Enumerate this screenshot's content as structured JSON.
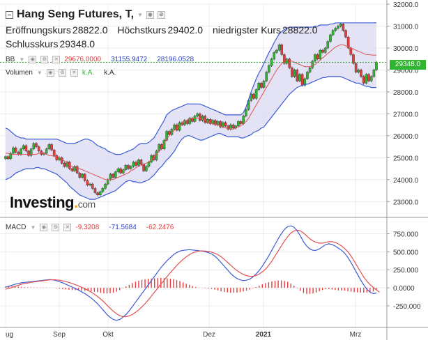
{
  "header": {
    "title": "Hang Seng Futures, T,",
    "open_label": "Eröffnungskurs",
    "open_value": "28822.0",
    "high_label": "Höchstkurs",
    "high_value": "29402.0",
    "low_label": "niedrigster Kurs",
    "low_value": "28822.0",
    "close_label": "Schlusskurs",
    "close_value": "29348.0"
  },
  "indicators": {
    "bb": {
      "name": "BB",
      "middle": "29676.0000",
      "upper": "31155.9472",
      "lower": "28196.0528"
    },
    "volume": {
      "name": "Volumen",
      "value1": "k.A.",
      "value2": "k.A."
    },
    "macd": {
      "name": "MACD",
      "histogram": "-9.3208",
      "macd": "-71.5684",
      "signal": "-62.2476"
    }
  },
  "price_tag": "29348.0",
  "logo": {
    "text": "Investing",
    "suffix": "com"
  },
  "colors": {
    "up": "#2fb52f",
    "down": "#e23d3d",
    "bb_fill": "#dcdcf2",
    "bb_line": "#3b5bd6",
    "bb_mid": "#e05050",
    "macd_line": "#3b5bd6",
    "signal_line": "#e05050",
    "accent": "#2fb52f"
  },
  "chart_data": [
    {
      "type": "line",
      "ylim": [
        22500,
        32000
      ],
      "y_ticks": [
        "23000.0",
        "24000.0",
        "25000.0",
        "26000.0",
        "27000.0",
        "28000.0",
        "29000.0",
        "30000.0",
        "31000.0",
        "32000.0"
      ],
      "x_labels": [
        "ug",
        "Sep",
        "Okt",
        "Dez",
        "2021",
        "Mrz"
      ],
      "close": [
        25050,
        24950,
        25200,
        25450,
        25250,
        25150,
        25400,
        25550,
        25300,
        25100,
        25400,
        25650,
        25500,
        25300,
        25150,
        25200,
        25400,
        25600,
        25350,
        25100,
        24900,
        25000,
        24750,
        24600,
        24800,
        24500,
        24400,
        24600,
        24300,
        24100,
        24250,
        23950,
        23750,
        23800,
        23600,
        23400,
        23300,
        23450,
        23600,
        23800,
        24000,
        24250,
        24100,
        24350,
        24500,
        24300,
        24450,
        24650,
        24500,
        24600,
        24800,
        24650,
        24900,
        24700,
        24400,
        24600,
        24800,
        25100,
        24900,
        25300,
        25600,
        25400,
        25800,
        26200,
        26050,
        26300,
        26500,
        26250,
        26600,
        26500,
        26700,
        26550,
        26800,
        26650,
        26900,
        27000,
        26700,
        26900,
        26600,
        26750,
        26550,
        26700,
        26500,
        26650,
        26400,
        26600,
        26450,
        26300,
        26500,
        26350,
        26450,
        26650,
        26550,
        26900,
        27200,
        27600,
        27900,
        27700,
        28100,
        28400,
        28200,
        28500,
        28900,
        29200,
        29500,
        29800,
        29900,
        30150,
        29700,
        29300,
        29500,
        29100,
        28700,
        29000,
        28500,
        28800,
        28300,
        28600,
        28900,
        29100,
        29400,
        29700,
        29500,
        29900,
        29800,
        30000,
        30300,
        30600,
        30800,
        30900,
        31000,
        31100,
        30800,
        30500,
        30000,
        29700,
        29300,
        28900,
        29000,
        28700,
        28400,
        28800,
        28500,
        28700,
        29000,
        29348
      ],
      "bb_upper": [
        26350,
        26300,
        26200,
        26100,
        26000,
        25950,
        25900,
        25900,
        25850,
        25850,
        25850,
        25850,
        25850,
        25850,
        25850,
        25850,
        25850,
        25850,
        25850,
        25850,
        25850,
        25800,
        25750,
        25700,
        25650,
        25650,
        25650,
        25650,
        25700,
        25750,
        25800,
        25850,
        25850,
        25800,
        25750,
        25650,
        25550,
        25500,
        25450,
        25400,
        25300,
        25250,
        25200,
        25150,
        25150,
        25150,
        25200,
        25250,
        25300,
        25350,
        25400,
        25500,
        25600,
        25650,
        25650,
        25650,
        25700,
        25800,
        25900,
        26100,
        26300,
        26500,
        26700,
        26950,
        27050,
        27150,
        27200,
        27250,
        27300,
        27350,
        27400,
        27450,
        27450,
        27450,
        27450,
        27450,
        27450,
        27400,
        27350,
        27300,
        27250,
        27200,
        27150,
        27100,
        27050,
        27000,
        26950,
        26950,
        26950,
        26950,
        26950,
        26950,
        26950,
        27050,
        27300,
        27650,
        28000,
        28300,
        28600,
        28850,
        29050,
        29300,
        29550,
        29800,
        30000,
        30250,
        30450,
        30650,
        30750,
        30850,
        30900,
        30950,
        30950,
        30950,
        30950,
        30950,
        30950,
        30950,
        30950,
        30950,
        30950,
        31000,
        31000,
        31050,
        31050,
        31050,
        31050,
        31100,
        31100,
        31150,
        31150,
        31150,
        31150,
        31150,
        31150,
        31150,
        31150,
        31150,
        31150,
        31150,
        31150,
        31150,
        31150,
        31150,
        31150,
        31156
      ],
      "bb_lower": [
        24000,
        24050,
        24100,
        24200,
        24300,
        24350,
        24400,
        24450,
        24500,
        24500,
        24500,
        24500,
        24550,
        24550,
        24500,
        24500,
        24450,
        24400,
        24350,
        24300,
        24250,
        24150,
        24050,
        23950,
        23850,
        23700,
        23600,
        23500,
        23400,
        23300,
        23250,
        23200,
        23150,
        23100,
        23100,
        23100,
        23150,
        23200,
        23250,
        23300,
        23350,
        23400,
        23450,
        23500,
        23600,
        23700,
        23800,
        23900,
        23950,
        23950,
        23900,
        23900,
        23850,
        23850,
        23900,
        23950,
        24000,
        24100,
        24200,
        24350,
        24500,
        24600,
        24750,
        24900,
        25000,
        25150,
        25300,
        25500,
        25700,
        25850,
        25950,
        26000,
        26000,
        25950,
        25900,
        25850,
        25800,
        25800,
        25850,
        25900,
        25950,
        26000,
        26050,
        26100,
        26100,
        26050,
        26000,
        25950,
        25950,
        25950,
        25950,
        25950,
        25900,
        25900,
        25950,
        26000,
        26050,
        26150,
        26200,
        26250,
        26350,
        26400,
        26550,
        26700,
        26850,
        27000,
        27150,
        27300,
        27450,
        27600,
        27750,
        27900,
        28000,
        28100,
        28200,
        28250,
        28300,
        28350,
        28350,
        28400,
        28450,
        28500,
        28550,
        28600,
        28650,
        28650,
        28700,
        28700,
        28700,
        28700,
        28700,
        28700,
        28650,
        28600,
        28550,
        28500,
        28450,
        28400,
        28400,
        28350,
        28300,
        28250,
        28250,
        28200,
        28200,
        28196
      ],
      "bb_mid": [
        25200,
        25200,
        25150,
        25150,
        25150,
        25150,
        25150,
        25150,
        25150,
        25150,
        25150,
        25150,
        25150,
        25200,
        25200,
        25200,
        25150,
        25100,
        25100,
        25050,
        25050,
        25000,
        24950,
        24850,
        24750,
        24650,
        24600,
        24550,
        24500,
        24500,
        24450,
        24400,
        24350,
        24300,
        24250,
        24200,
        24150,
        24100,
        24050,
        24000,
        24000,
        24000,
        24000,
        24050,
        24100,
        24150,
        24200,
        24250,
        24300,
        24400,
        24450,
        24550,
        24600,
        24650,
        24700,
        24750,
        24800,
        24900,
        25000,
        25150,
        25300,
        25450,
        25650,
        25850,
        26000,
        26150,
        26250,
        26350,
        26450,
        26550,
        26650,
        26700,
        26750,
        26800,
        26800,
        26800,
        26800,
        26750,
        26700,
        26650,
        26600,
        26550,
        26500,
        26500,
        26450,
        26400,
        26350,
        26350,
        26300,
        26300,
        26350,
        26400,
        26450,
        26550,
        26650,
        26800,
        27000,
        27200,
        27400,
        27600,
        27800,
        28000,
        28200,
        28400,
        28600,
        28800,
        29000,
        29150,
        29300,
        29400,
        29450,
        29450,
        29400,
        29350,
        29300,
        29250,
        29200,
        29150,
        29150,
        29150,
        29200,
        29250,
        29350,
        29450,
        29550,
        29650,
        29750,
        29850,
        29950,
        30050,
        30100,
        30150,
        30150,
        30100,
        30050,
        30000,
        29950,
        29900,
        29850,
        29800,
        29750,
        29700,
        29700,
        29680,
        29676,
        29676
      ]
    },
    {
      "type": "line",
      "ylim": [
        -550,
        900
      ],
      "y_ticks": [
        "-250.000",
        "0.0000",
        "250.000",
        "500.000",
        "750.000"
      ],
      "macd": [
        10,
        20,
        35,
        50,
        60,
        70,
        75,
        80,
        85,
        90,
        95,
        100,
        105,
        110,
        115,
        110,
        100,
        85,
        70,
        50,
        30,
        10,
        -10,
        -30,
        -55,
        -80,
        -110,
        -140,
        -180,
        -220,
        -270,
        -320,
        -370,
        -410,
        -440,
        -450,
        -440,
        -410,
        -370,
        -320,
        -260,
        -200,
        -140,
        -80,
        -20,
        40,
        100,
        160,
        220,
        280,
        330,
        380,
        420,
        460,
        490,
        510,
        520,
        525,
        530,
        525,
        520,
        515,
        510,
        500,
        490,
        470,
        440,
        400,
        350,
        300,
        250,
        200,
        160,
        130,
        110,
        100,
        105,
        120,
        150,
        190,
        240,
        300,
        370,
        440,
        520,
        600,
        680,
        750,
        810,
        850,
        860,
        840,
        790,
        720,
        640,
        580,
        540,
        520,
        520,
        540,
        570,
        600,
        610,
        600,
        580,
        550,
        520,
        480,
        420,
        350,
        270,
        190,
        110,
        40,
        -20,
        -60,
        -80,
        -72
      ],
      "signal": [
        -20,
        -10,
        5,
        20,
        35,
        50,
        60,
        68,
        75,
        82,
        88,
        94,
        100,
        105,
        110,
        112,
        110,
        105,
        97,
        87,
        74,
        60,
        44,
        27,
        8,
        -12,
        -35,
        -60,
        -88,
        -120,
        -155,
        -195,
        -240,
        -285,
        -325,
        -360,
        -385,
        -400,
        -400,
        -390,
        -370,
        -340,
        -305,
        -265,
        -220,
        -170,
        -115,
        -60,
        -5,
        50,
        105,
        160,
        210,
        260,
        310,
        355,
        395,
        430,
        460,
        485,
        500,
        510,
        512,
        510,
        505,
        495,
        480,
        460,
        430,
        395,
        355,
        315,
        275,
        240,
        210,
        185,
        170,
        160,
        160,
        170,
        190,
        220,
        260,
        310,
        370,
        440,
        510,
        580,
        650,
        710,
        760,
        790,
        800,
        790,
        760,
        720,
        680,
        650,
        630,
        620,
        620,
        630,
        640,
        640,
        630,
        610,
        580,
        545,
        500,
        440,
        370,
        295,
        220,
        150,
        90,
        45,
        5,
        -30,
        -62
      ]
    }
  ]
}
